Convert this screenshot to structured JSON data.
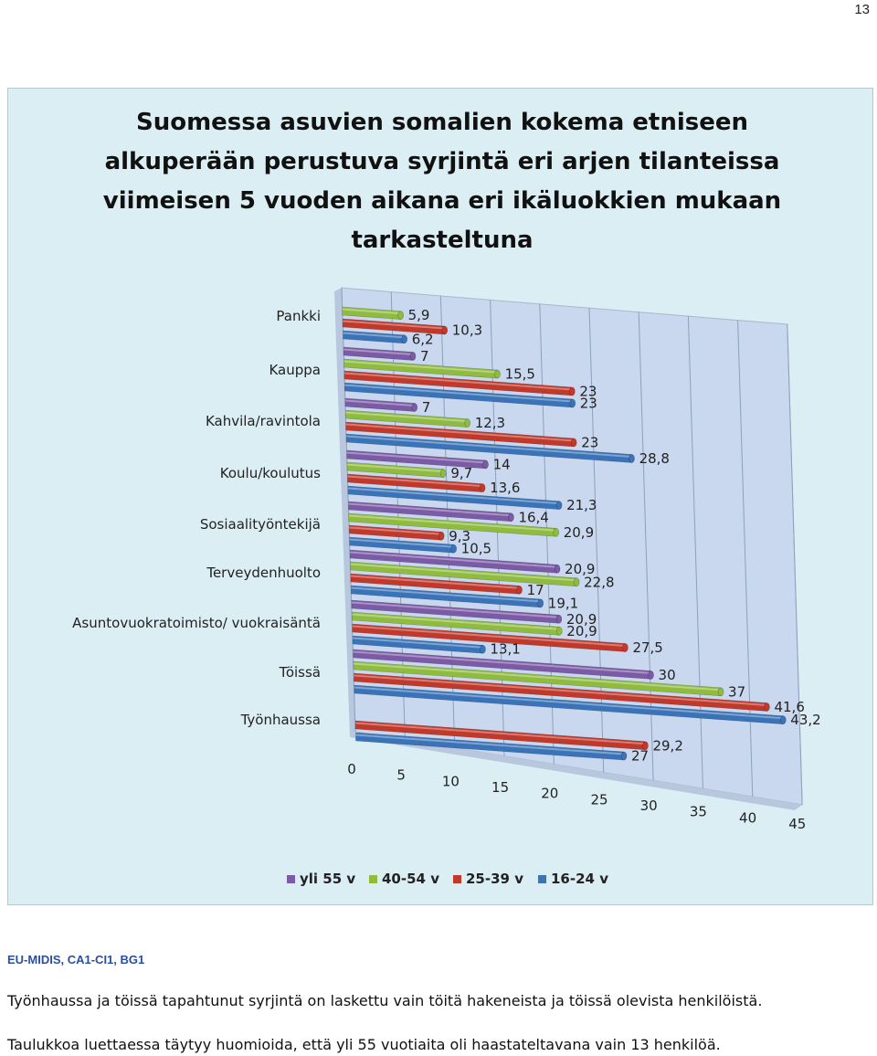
{
  "page_number": "13",
  "colors": {
    "yli 55 v": "#7b5aa6",
    "40-54 v": "#8fbc3f",
    "25-39 v": "#c0392b",
    "16-24 v": "#3a73b8",
    "plot_wall": "#c9d7ef",
    "frame_bg": "#dbeef4"
  },
  "chart_data": {
    "type": "bar",
    "orientation": "horizontal",
    "style": "3d-cylinder",
    "title": "Suomessa asuvien somalien kokema etniseen alkuperään perustuva syrjintä eri arjen tilanteissa viimeisen 5 vuoden aikana eri ikäluokkien mukaan tarkasteltuna",
    "title_lines": [
      "Suomessa asuvien somalien kokema etniseen",
      "alkuperään perustuva syrjintä eri arjen tilanteissa",
      "viimeisen 5 vuoden aikana eri ikäluokkien mukaan",
      "tarkasteltuna"
    ],
    "categories": [
      "Pankki",
      "Kauppa",
      "Kahvila/ravintola",
      "Koulu/koulutus",
      "Sosiaalityöntekijä",
      "Terveydenhuolto",
      "Asuntovuokratoimisto/ vuokraisäntä",
      "Töissä",
      "Työnhaussa"
    ],
    "series": [
      {
        "name": "yli 55 v",
        "values": [
          null,
          7,
          7,
          14,
          16.4,
          20.9,
          20.9,
          30,
          null
        ]
      },
      {
        "name": "40-54 v",
        "values": [
          5.9,
          15.5,
          12.3,
          9.7,
          20.9,
          22.8,
          20.9,
          37,
          null
        ]
      },
      {
        "name": "25-39 v",
        "values": [
          10.3,
          23,
          23,
          13.6,
          9.3,
          17,
          27.5,
          41.6,
          29.2
        ]
      },
      {
        "name": "16-24 v",
        "values": [
          6.2,
          23,
          28.8,
          21.3,
          10.5,
          19.1,
          13.1,
          43.2,
          27
        ]
      }
    ],
    "xlim": [
      0,
      45
    ],
    "xticks": [
      0,
      5,
      10,
      15,
      20,
      25,
      30,
      35,
      40,
      45
    ],
    "legend": [
      "yli 55 v",
      "40-54 v",
      "25-39 v",
      "16-24 v"
    ],
    "legend_position": "bottom",
    "grid": true
  },
  "source": "EU-MIDIS, CA1-CI1, BG1",
  "notes": [
    "Työnhaussa ja töissä tapahtunut syrjintä on laskettu vain töitä hakeneista ja töissä olevista henkilöistä.",
    "Taulukkoa luettaessa täytyy huomioida, että yli 55 vuotiaita oli haastateltavana vain 13 henkilöä."
  ]
}
